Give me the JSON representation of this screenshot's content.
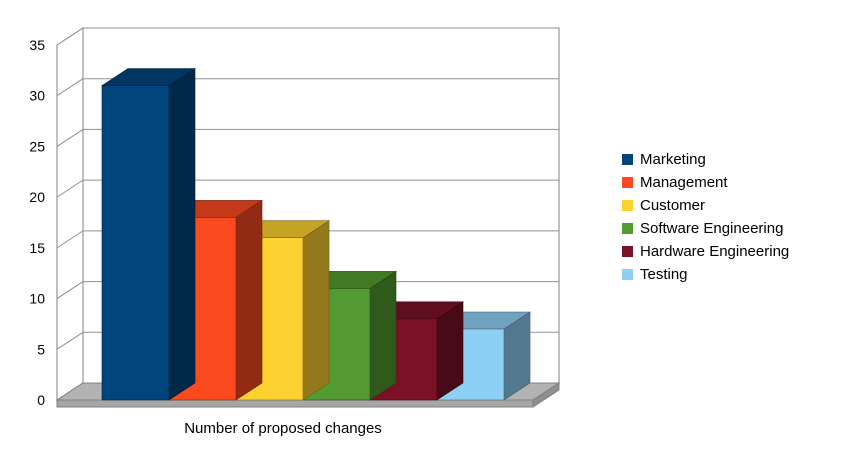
{
  "chart_data": {
    "type": "bar",
    "projection": "3d",
    "title": "",
    "xlabel": "Number of proposed changes",
    "ylabel": "",
    "categories": [
      "Marketing",
      "Management",
      "Customer",
      "Software Engineering",
      "Hardware Engineering",
      "Testing"
    ],
    "values": [
      31,
      18,
      16,
      11,
      8,
      7
    ],
    "colors": [
      "#00457c",
      "#fb4a20",
      "#fdd130",
      "#539b30",
      "#7b1126",
      "#8ed0f4"
    ],
    "ylim": [
      0,
      35
    ],
    "ytick_step": 5,
    "yticks": [
      0,
      5,
      10,
      15,
      20,
      25,
      30,
      35
    ],
    "grid": true,
    "legend_position": "right"
  },
  "style": {
    "background": "#ffffff",
    "wall_fill": "#ffffff",
    "wall_stroke": "#808080",
    "gridline_color": "#8f8f8f",
    "floor_top": "#b3b3b3",
    "floor_front": "#a6a6a6",
    "floor_side": "#8f8f8f",
    "text_color": "#000000"
  }
}
